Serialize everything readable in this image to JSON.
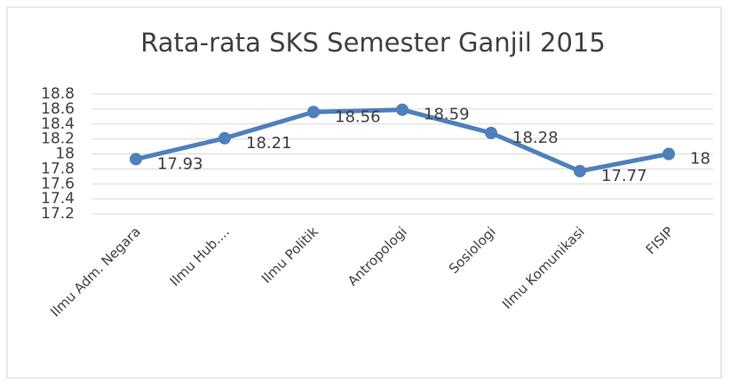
{
  "chart_data": {
    "type": "line",
    "title": "Rata-rata SKS Semester Ganjil 2015",
    "categories": [
      "Ilmu Adm. Negara",
      "Ilmu Hub....",
      "Ilmu Politik",
      "Antropologi",
      "Sosiologi",
      "Ilmu Komunikasi",
      "FISIP"
    ],
    "series": [
      {
        "name": "Rata-rata SKS",
        "color": "#4f7fbc",
        "values": [
          17.93,
          18.21,
          18.56,
          18.59,
          18.28,
          17.77,
          18
        ]
      }
    ],
    "ylim": [
      17.2,
      18.8
    ],
    "yticks": [
      17.2,
      17.4,
      17.6,
      17.8,
      18,
      18.2,
      18.4,
      18.6,
      18.8
    ],
    "grid": true
  }
}
